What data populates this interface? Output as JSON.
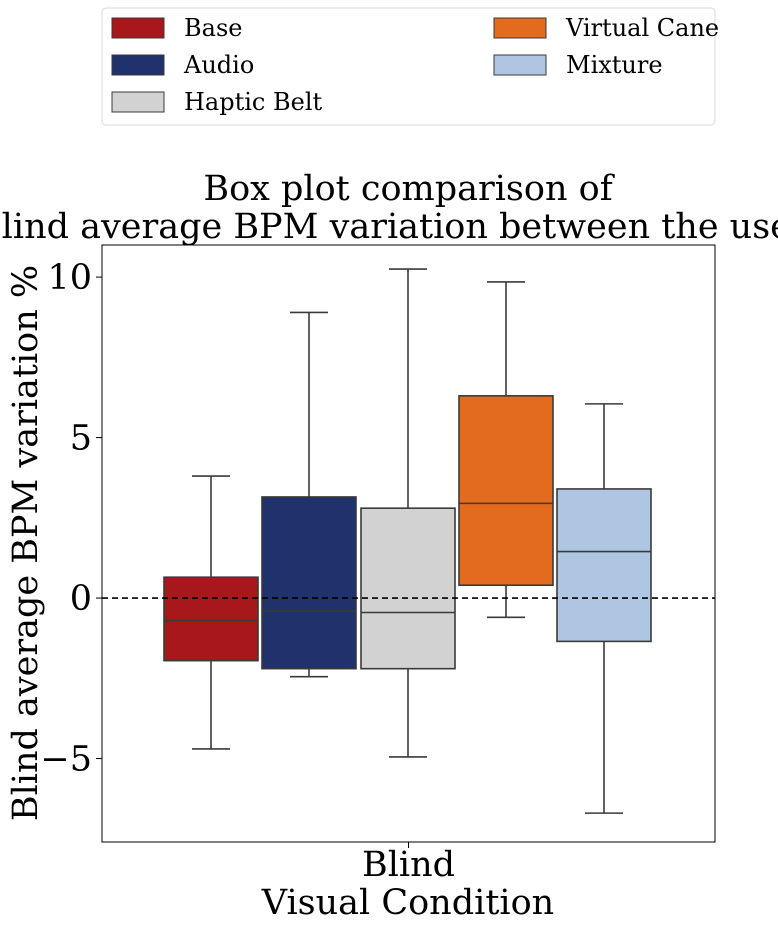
{
  "chart_data": {
    "type": "box",
    "title_lines": [
      "Box plot comparison of",
      "blind average BPM variation between the users."
    ],
    "xlabel": "Visual Condition",
    "ylabel": "Blind average BPM variation %",
    "categories": [
      "Blind"
    ],
    "ylim": [
      -7.6,
      11.0
    ],
    "yticks": [
      10,
      5,
      0,
      -5
    ],
    "ytick_labels": [
      "10",
      "5",
      "0",
      "−5"
    ],
    "reference_line": {
      "y": 0,
      "style": "dashed"
    },
    "legend": {
      "placement": "top",
      "columns": 2
    },
    "series": [
      {
        "name": "Base",
        "color": "#a8171a",
        "whisker_low": -4.7,
        "q1": -1.95,
        "median": -0.7,
        "q3": 0.65,
        "whisker_high": 3.8
      },
      {
        "name": "Audio",
        "color": "#1f326b",
        "whisker_low": -2.45,
        "q1": -2.2,
        "median": -0.4,
        "q3": 3.15,
        "whisker_high": 8.9
      },
      {
        "name": "Haptic Belt",
        "color": "#d2d2d2",
        "whisker_low": -4.95,
        "q1": -2.2,
        "median": -0.45,
        "q3": 2.8,
        "whisker_high": 10.25
      },
      {
        "name": "Virtual Cane",
        "color": "#e36b1e",
        "whisker_low": -0.6,
        "q1": 0.4,
        "median": 2.95,
        "q3": 6.3,
        "whisker_high": 9.85
      },
      {
        "name": "Mixture",
        "color": "#aec6e1",
        "whisker_low": -6.7,
        "q1": -1.35,
        "median": 1.45,
        "q3": 3.4,
        "whisker_high": 6.05
      }
    ]
  }
}
